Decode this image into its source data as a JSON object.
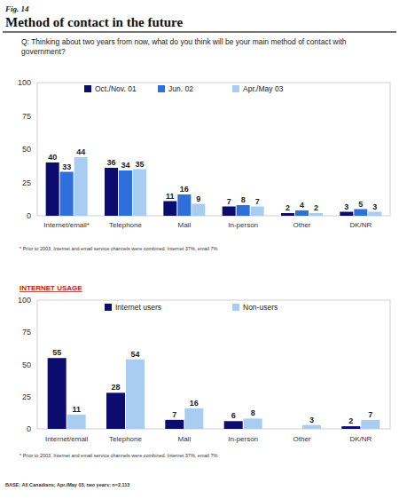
{
  "header": {
    "figure": "Fig. 14",
    "title": "Method of contact in the future",
    "question": "Q: Thinking about two years from now, what do you think will be your main method of contact with government?"
  },
  "chart_data": [
    {
      "type": "bar",
      "categories": [
        "Internet/email*",
        "Telephone",
        "Mail",
        "In-person",
        "Other",
        "DK/NR"
      ],
      "series": [
        {
          "name": "Oct./Nov. 01",
          "color": "#0c0c6e",
          "values": [
            40,
            36,
            11,
            7,
            2,
            3
          ]
        },
        {
          "name": "Jun. 02",
          "color": "#2f6fdc",
          "values": [
            33,
            34,
            16,
            8,
            4,
            5
          ]
        },
        {
          "name": "Apr./May 03",
          "color": "#a9cdf0",
          "values": [
            44,
            35,
            9,
            7,
            2,
            3
          ]
        }
      ],
      "ylim": [
        0,
        100
      ],
      "yticks": [
        0,
        25,
        50,
        75,
        100
      ],
      "grid": false,
      "data_labels": true,
      "legend": "top",
      "annotations": [
        "* Prior to 2003, Internet and email service channels were combined.  Internet 37%, email 7%"
      ]
    },
    {
      "type": "bar",
      "title": "INTERNET USAGE",
      "categories": [
        "Internet/email",
        "Telephone",
        "Mail",
        "In-person",
        "Other",
        "DK/NR"
      ],
      "series": [
        {
          "name": "Internet users",
          "color": "#0c0c6e",
          "values": [
            55,
            28,
            7,
            6,
            null,
            2
          ]
        },
        {
          "name": "Non-users",
          "color": "#a9cdf0",
          "values": [
            11,
            54,
            16,
            8,
            3,
            7
          ]
        }
      ],
      "ylim": [
        0,
        100
      ],
      "yticks": [
        0,
        25,
        50,
        75,
        100
      ],
      "grid": false,
      "data_labels": true,
      "legend": "top",
      "annotations": [
        "* Prior to 2003, Internet and email service channels were combined.  Internet 37%, email 7%"
      ]
    }
  ],
  "footer": {
    "base": "BASE: All Canadians; Apr./May 03, two years; n=2,113"
  }
}
